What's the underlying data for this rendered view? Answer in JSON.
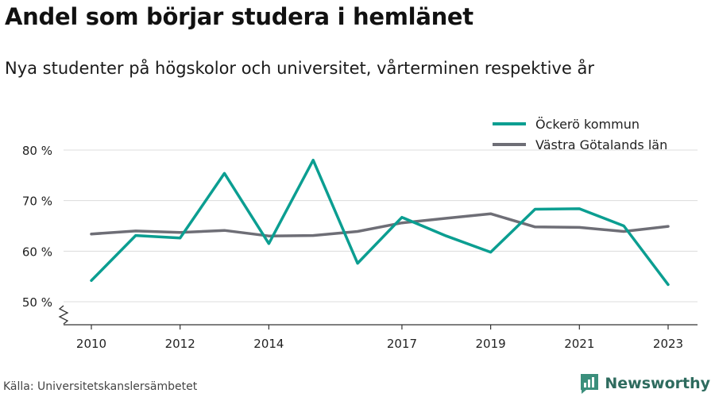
{
  "title": "Andel som börjar studera i hemlänet",
  "subtitle": "Nya studenter på högskolor och universitet, vårterminen respektive år",
  "source": "Källa: Universitetskanslersämbetet",
  "brand": {
    "name": "Newsworthy",
    "color": "#2e6b5e",
    "icon": "bar-chart-logo-icon"
  },
  "chart_data": {
    "type": "line",
    "x": [
      2010,
      2011,
      2012,
      2013,
      2014,
      2015,
      2016,
      2017,
      2018,
      2019,
      2020,
      2021,
      2022,
      2023
    ],
    "xticks": [
      2010,
      2012,
      2014,
      2017,
      2019,
      2021,
      2023
    ],
    "ylim": [
      50,
      80
    ],
    "yticks": [
      50,
      60,
      70,
      80
    ],
    "ytick_labels": [
      "50 %",
      "60 %",
      "70 %",
      "80 %"
    ],
    "y_axis_break": true,
    "grid": true,
    "legend_position": "top-right",
    "series": [
      {
        "name": "Öckerö kommun",
        "color": "#0b9e91",
        "values": [
          54.2,
          63.1,
          62.6,
          75.4,
          61.5,
          78.0,
          57.6,
          66.7,
          63.0,
          59.8,
          68.3,
          68.4,
          65.0,
          53.4
        ]
      },
      {
        "name": "Västra Götalands län",
        "color": "#6e6e76",
        "values": [
          63.4,
          64.0,
          63.7,
          64.1,
          63.0,
          63.1,
          63.9,
          65.6,
          66.5,
          67.4,
          64.8,
          64.7,
          63.9,
          64.9
        ]
      }
    ]
  }
}
